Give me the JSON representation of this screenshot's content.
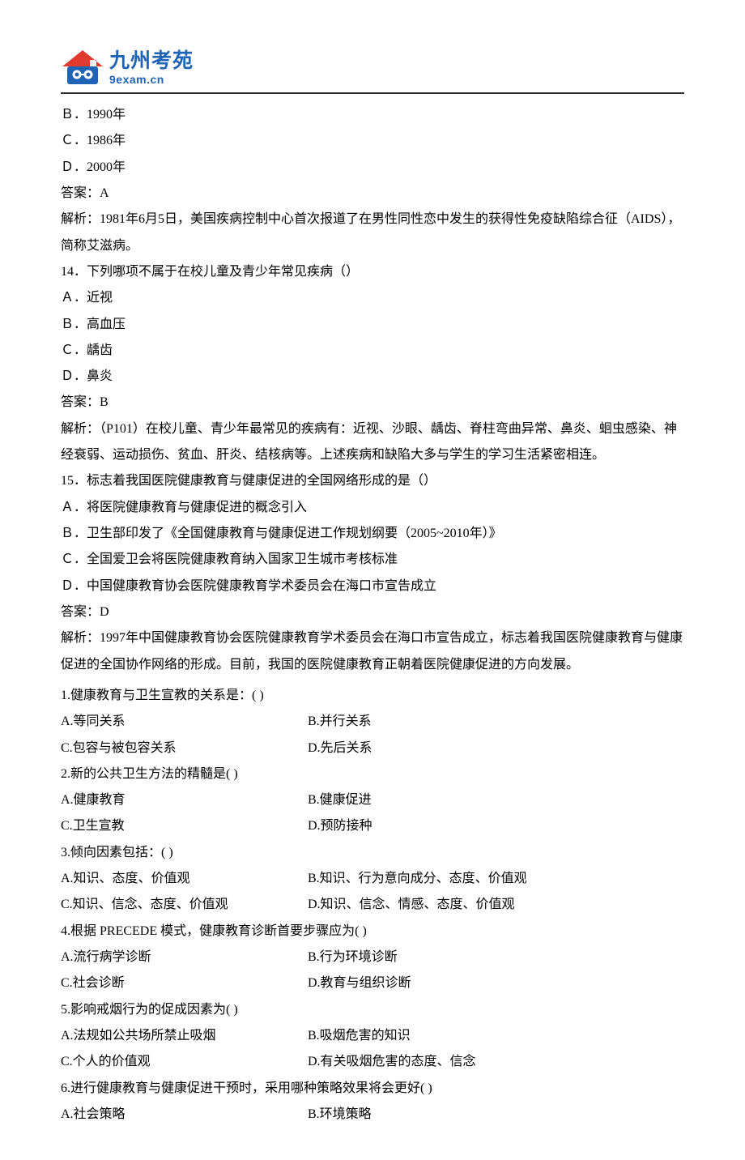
{
  "logo": {
    "cn": "九州考苑",
    "en": "9exam.cn",
    "roof_color": "#e23a2e",
    "wall_color": "#1f63b5",
    "text_color": "#1f63b5"
  },
  "hr_color": "#2a2a2a",
  "text_color": "#000000",
  "font_size": 16,
  "line_height": 2.02,
  "upper_lines": [
    "Ｂ．1990年",
    "Ｃ．1986年",
    "Ｄ．2000年",
    "答案：A",
    "解析：1981年6月5日，美国疾病控制中心首次报道了在男性同性恋中发生的获得性免疫缺陷综合征（AIDS），简称艾滋病。",
    "14．下列哪项不属于在校儿童及青少年常见疾病（）",
    "Ａ．近视",
    "Ｂ．高血压",
    "Ｃ．龋齿",
    "Ｄ．鼻炎",
    "答案：B",
    "解析：（P101）在校儿童、青少年最常见的疾病有：近视、沙眼、龋齿、脊柱弯曲异常、鼻炎、蛔虫感染、神经衰弱、运动损伤、贫血、肝炎、结核病等。上述疾病和缺陷大多与学生的学习生活紧密相连。",
    "15．标志着我国医院健康教育与健康促进的全国网络形成的是（）",
    "Ａ．将医院健康教育与健康促进的概念引入",
    "Ｂ．卫生部印发了《全国健康教育与健康促进工作规划纲要（2005~2010年）》",
    "Ｃ．全国爱卫会将医院健康教育纳入国家卫生城市考核标准",
    "Ｄ．中国健康教育协会医院健康教育学术委员会在海口市宣告成立",
    "答案：D",
    "解析：1997年中国健康教育协会医院健康教育学术委员会在海口市宣告成立，标志着我国医院健康教育与健康促进的全国协作网络的形成。目前，我国的医院健康教育正朝着医院健康促进的方向发展。"
  ],
  "mcq": [
    {
      "stem": "1.健康教育与卫生宣教的关系是：(         )",
      "opts": [
        [
          "A.等同关系",
          "B.并行关系"
        ],
        [
          "C.包容与被包容关系",
          "D.先后关系"
        ]
      ]
    },
    {
      "stem": "2.新的公共卫生方法的精髓是(         )",
      "opts": [
        [
          "A.健康教育",
          "B.健康促进"
        ],
        [
          "C.卫生宣教",
          "D.预防接种"
        ]
      ]
    },
    {
      "stem": "3.倾向因素包括：(         )",
      "opts": [
        [
          "A.知识、态度、价值观",
          "B.知识、行为意向成分、态度、价值观"
        ],
        [
          "C.知识、信念、态度、价值观",
          "D.知识、信念、情感、态度、价值观"
        ]
      ]
    },
    {
      "stem": "4.根据 PRECEDE 模式，健康教育诊断首要步骤应为(         )",
      "opts": [
        [
          "A.流行病学诊断",
          "B.行为环境诊断"
        ],
        [
          "C.社会诊断",
          "D.教育与组织诊断"
        ]
      ]
    },
    {
      "stem": "5.影响戒烟行为的促成因素为(         )",
      "opts": [
        [
          "A.法规如公共场所禁止吸烟",
          "B.吸烟危害的知识"
        ],
        [
          "C.个人的价值观",
          "D.有关吸烟危害的态度、信念"
        ]
      ]
    },
    {
      "stem": "6.进行健康教育与健康促进干预时，采用哪种策略效果将会更好(         )",
      "opts": [
        [
          "A.社会策略",
          "B.环境策略"
        ]
      ]
    }
  ]
}
